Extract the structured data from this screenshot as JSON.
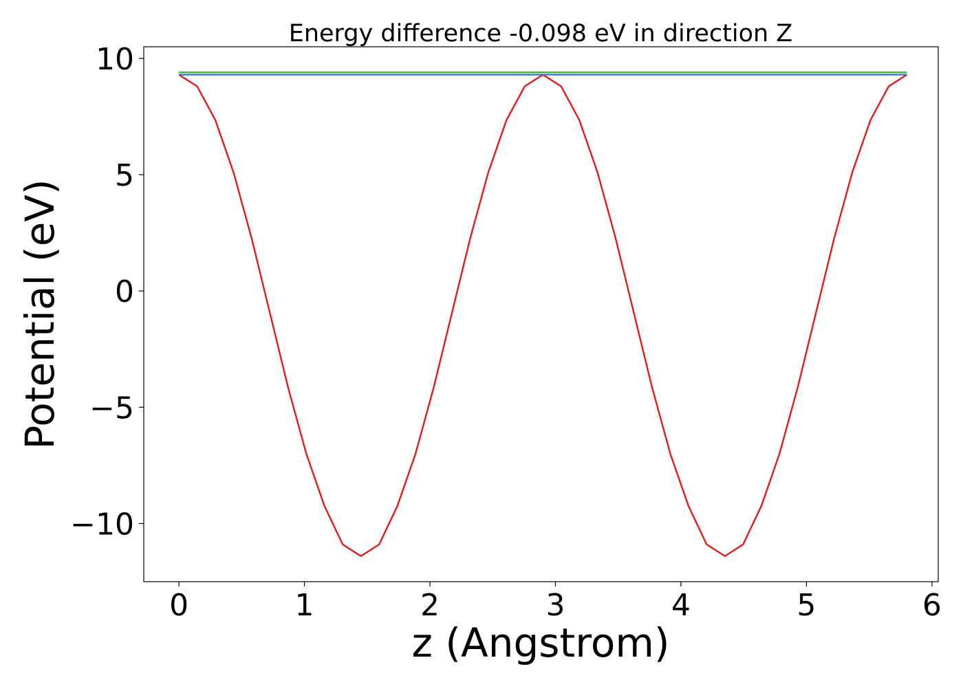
{
  "chart_data": {
    "type": "line",
    "title": "Energy difference -0.098 eV in direction Z",
    "xlabel": "z (Angstrom)",
    "ylabel": "Potential (eV)",
    "xlim": [
      -0.28,
      6.05
    ],
    "ylim": [
      -12.5,
      10.5
    ],
    "grid": false,
    "x_ticks": [
      0,
      1,
      2,
      3,
      4,
      5,
      6
    ],
    "x_tick_labels": [
      "0",
      "1",
      "2",
      "3",
      "4",
      "5",
      "6"
    ],
    "y_ticks": [
      -10,
      -5,
      0,
      5,
      10
    ],
    "y_tick_labels": [
      "−10",
      "−5",
      "0",
      "5",
      "10"
    ],
    "series": [
      {
        "color": "#e41a1c",
        "x": [
          0,
          0.145,
          0.29,
          0.435,
          0.58,
          0.725,
          0.87,
          1.015,
          1.16,
          1.305,
          1.45,
          1.595,
          1.74,
          1.885,
          2.03,
          2.175,
          2.32,
          2.465,
          2.61,
          2.755,
          2.9,
          3.045,
          3.19,
          3.335,
          3.48,
          3.625,
          3.77,
          3.915,
          4.06,
          4.205,
          4.35,
          4.495,
          4.64,
          4.785,
          4.93,
          5.075,
          5.22,
          5.365,
          5.51,
          5.655,
          5.8
        ],
        "y": [
          9.3,
          8.8,
          7.35,
          5.1,
          2.25,
          -0.95,
          -4.15,
          -7.0,
          -9.25,
          -10.9,
          -11.4,
          -10.9,
          -9.25,
          -7.0,
          -4.15,
          -0.95,
          2.25,
          5.1,
          7.35,
          8.8,
          9.3,
          8.8,
          7.35,
          5.1,
          2.25,
          -0.95,
          -4.15,
          -7.0,
          -9.25,
          -10.9,
          -11.4,
          -10.9,
          -9.25,
          -7.0,
          -4.15,
          -0.95,
          2.25,
          5.1,
          7.35,
          8.8,
          9.3
        ]
      },
      {
        "color": "#4daf4a",
        "x": [
          0,
          5.8
        ],
        "y": [
          9.4,
          9.4
        ]
      },
      {
        "color": "#377eb8",
        "x": [
          0,
          5.8
        ],
        "y": [
          9.3,
          9.3
        ]
      }
    ]
  }
}
